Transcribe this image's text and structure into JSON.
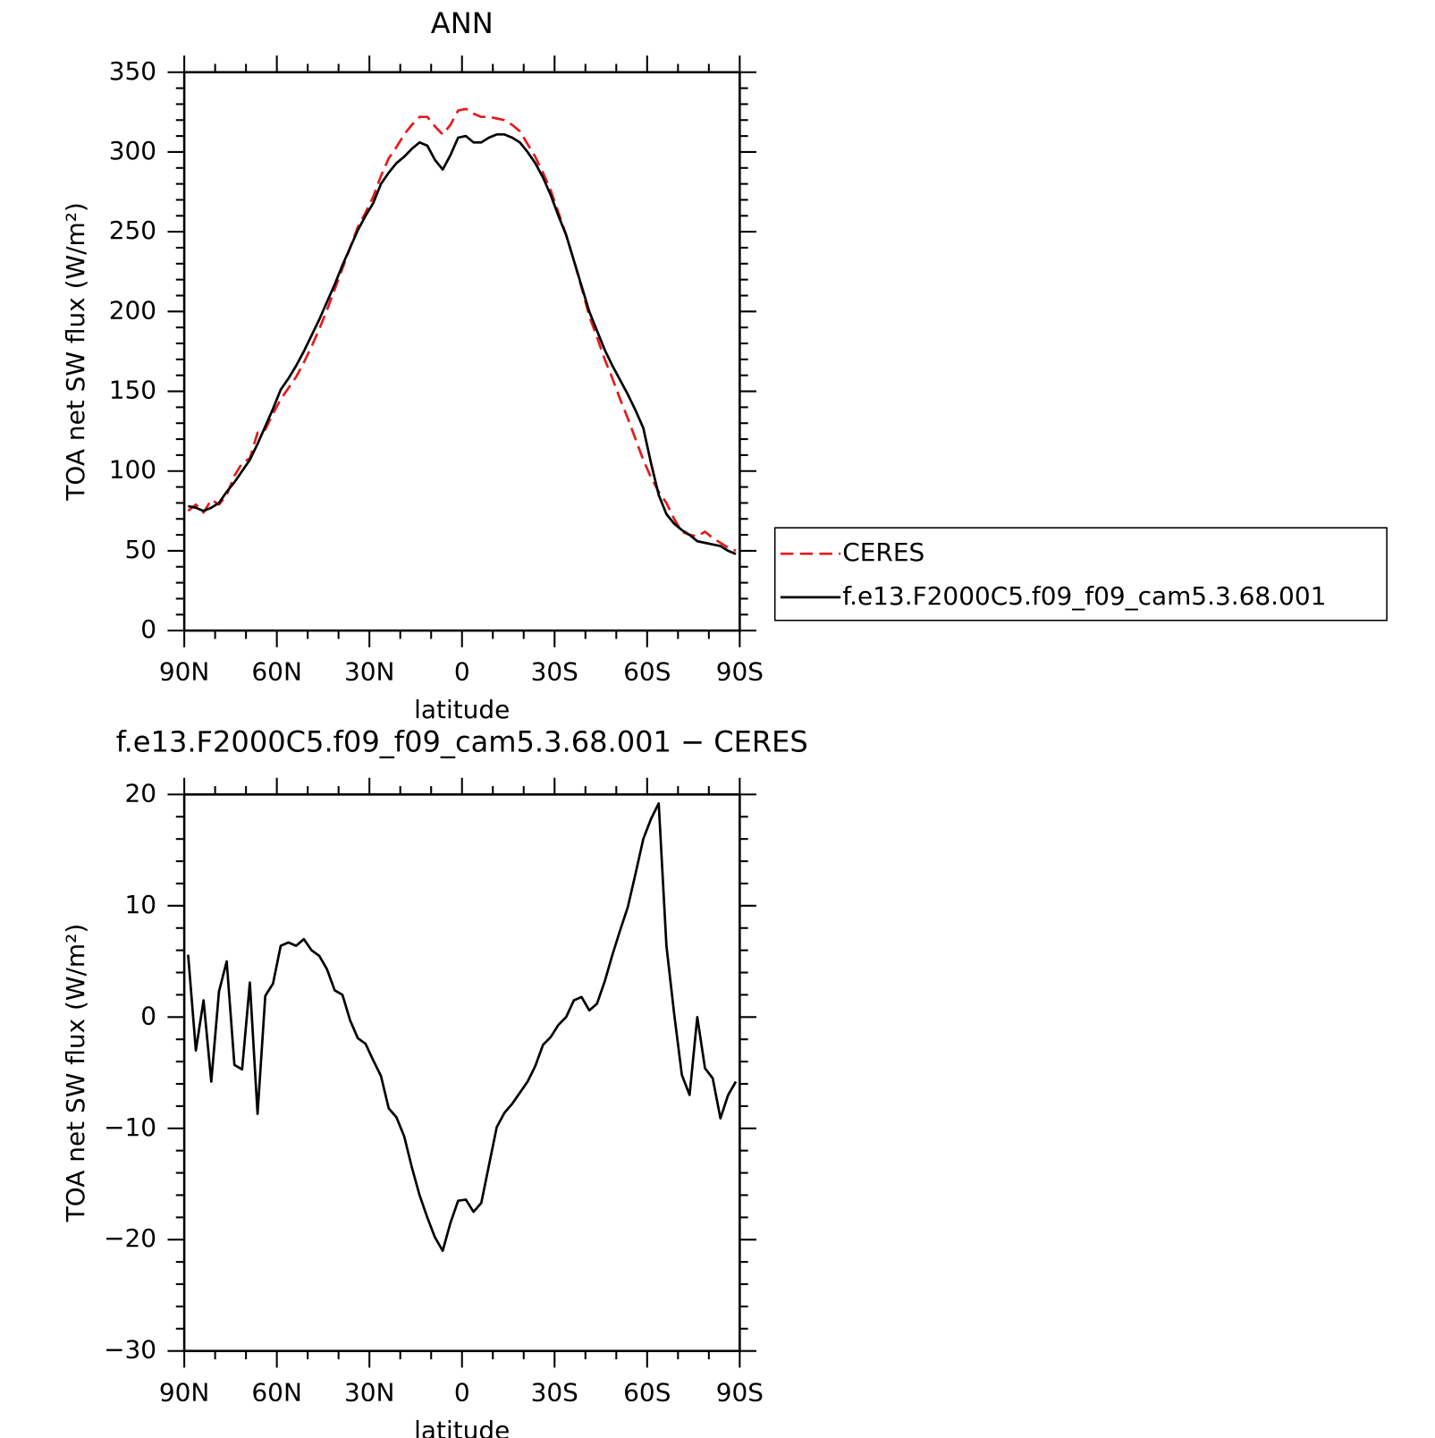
{
  "chart_data": [
    {
      "type": "line",
      "title": "ANN",
      "xlabel": "latitude",
      "ylabel": "TOA net SW flux (W/m²)",
      "x": [
        88.75,
        86.25,
        83.75,
        81.25,
        78.75,
        76.25,
        73.75,
        71.25,
        68.75,
        66.25,
        63.75,
        61.25,
        58.75,
        56.25,
        53.75,
        51.25,
        48.75,
        46.25,
        43.75,
        41.25,
        38.75,
        36.25,
        33.75,
        31.25,
        28.75,
        26.25,
        23.75,
        21.25,
        18.75,
        16.25,
        13.75,
        11.25,
        8.75,
        6.25,
        3.75,
        1.25,
        -1.25,
        -3.75,
        -6.25,
        -8.75,
        -11.25,
        -13.75,
        -16.25,
        -18.75,
        -21.25,
        -23.75,
        -26.25,
        -28.75,
        -31.25,
        -33.75,
        -36.25,
        -38.75,
        -41.25,
        -43.75,
        -46.25,
        -48.75,
        -51.25,
        -53.75,
        -56.25,
        -58.75,
        -61.25,
        -63.75,
        -66.25,
        -68.75,
        -71.25,
        -73.75,
        -76.25,
        -78.75,
        -81.25,
        -83.75,
        -86.25,
        -88.75
      ],
      "series": [
        {
          "name": "CERES",
          "color": "#e41a1c",
          "linestyle": "dashed",
          "values": [
            75,
            79,
            74,
            82,
            79,
            85,
            97,
            105,
            108,
            124,
            126,
            136,
            145,
            152,
            159,
            168,
            178,
            189,
            201,
            214,
            227,
            240,
            253,
            262,
            272,
            285,
            296,
            303,
            311,
            317,
            322,
            322,
            316,
            311,
            317,
            326,
            327,
            324,
            322,
            322,
            321,
            320,
            317,
            313,
            305,
            297,
            287,
            276,
            262,
            248,
            232,
            215,
            197,
            184,
            170,
            158,
            145,
            133,
            120,
            107,
            96,
            87,
            80,
            70,
            62,
            60,
            59,
            62,
            58,
            55,
            52,
            50
          ]
        },
        {
          "name": "f.e13.F2000C5.f09_f09_cam5.3.68.001",
          "color": "#000000",
          "linestyle": "solid",
          "values": [
            78,
            77,
            75,
            77,
            80,
            87,
            93,
            100,
            107,
            117,
            128,
            139,
            151,
            158,
            166,
            175,
            185,
            195,
            206,
            217,
            229,
            240,
            251,
            260,
            268,
            280,
            287,
            293,
            297,
            302,
            306,
            304,
            295,
            289,
            298,
            309,
            310,
            306,
            306,
            309,
            311,
            311,
            309,
            306,
            300,
            293,
            284,
            273,
            260,
            248,
            232,
            216,
            200,
            188,
            176,
            166,
            157,
            148,
            138,
            127,
            105,
            85,
            73,
            67,
            63,
            60,
            56,
            55,
            54,
            53,
            50,
            48
          ]
        }
      ],
      "xlim": [
        90,
        -90
      ],
      "xticks": [
        {
          "value": 90,
          "label": "90N"
        },
        {
          "value": 60,
          "label": "60N"
        },
        {
          "value": 30,
          "label": "30N"
        },
        0,
        {
          "value": -30,
          "label": "30S"
        },
        {
          "value": -60,
          "label": "60S"
        },
        {
          "value": -90,
          "label": "90S"
        }
      ],
      "ylim": [
        0,
        350
      ],
      "yticks": [
        0,
        50,
        100,
        150,
        200,
        250,
        300,
        350
      ],
      "legend": "right"
    },
    {
      "type": "line",
      "title": "f.e13.F2000C5.f09_f09_cam5.3.68.001 − CERES",
      "xlabel": "latitude",
      "ylabel": "TOA net SW flux (W/m²)",
      "x": [
        88.75,
        86.25,
        83.75,
        81.25,
        78.75,
        76.25,
        73.75,
        71.25,
        68.75,
        66.25,
        63.75,
        61.25,
        58.75,
        56.25,
        53.75,
        51.25,
        48.75,
        46.25,
        43.75,
        41.25,
        38.75,
        36.25,
        33.75,
        31.25,
        28.75,
        26.25,
        23.75,
        21.25,
        18.75,
        16.25,
        13.75,
        11.25,
        8.75,
        6.25,
        3.75,
        1.25,
        -1.25,
        -3.75,
        -6.25,
        -8.75,
        -11.25,
        -13.75,
        -16.25,
        -18.75,
        -21.25,
        -23.75,
        -26.25,
        -28.75,
        -31.25,
        -33.75,
        -36.25,
        -38.75,
        -41.25,
        -43.75,
        -46.25,
        -48.75,
        -51.25,
        -53.75,
        -56.25,
        -58.75,
        -61.25,
        -63.75,
        -66.25,
        -68.75,
        -71.25,
        -73.75,
        -76.25,
        -78.75,
        -81.25,
        -83.75,
        -86.25,
        -88.75
      ],
      "values": [
        5.6,
        -3,
        1.5,
        -5.8,
        2.3,
        5,
        -4.3,
        -4.7,
        3.1,
        -8.7,
        1.9,
        3,
        6.4,
        6.7,
        6.4,
        7,
        6,
        5.5,
        4.3,
        2.4,
        2,
        -0.3,
        -1.9,
        -2.4,
        -3.9,
        -5.3,
        -8.2,
        -9,
        -10.7,
        -13.5,
        -16,
        -18,
        -19.8,
        -21,
        -18.5,
        -16.5,
        -16.4,
        -17.5,
        -16.7,
        -13.3,
        -9.9,
        -8.6,
        -7.8,
        -6.8,
        -5.8,
        -4.4,
        -2.5,
        -1.8,
        -0.7,
        0,
        1.5,
        1.8,
        0.6,
        1.2,
        3.2,
        5.6,
        7.8,
        9.9,
        12.9,
        16,
        17.8,
        19.2,
        6.4,
        0.3,
        -5.2,
        -7,
        0,
        -4.6,
        -5.5,
        -9.1,
        -7,
        -5.8
      ],
      "color": "#000000",
      "xlim": [
        90,
        -90
      ],
      "xticks": [
        {
          "value": 90,
          "label": "90N"
        },
        {
          "value": 60,
          "label": "60N"
        },
        {
          "value": 30,
          "label": "30N"
        },
        0,
        {
          "value": -30,
          "label": "30S"
        },
        {
          "value": -60,
          "label": "60S"
        },
        {
          "value": -90,
          "label": "90S"
        }
      ],
      "ylim": [
        -30,
        20
      ],
      "yticks": [
        {
          "value": -30,
          "label": "−30"
        },
        {
          "value": -20,
          "label": "−20"
        },
        {
          "value": -10,
          "label": "−10"
        },
        0,
        10,
        20
      ]
    }
  ]
}
